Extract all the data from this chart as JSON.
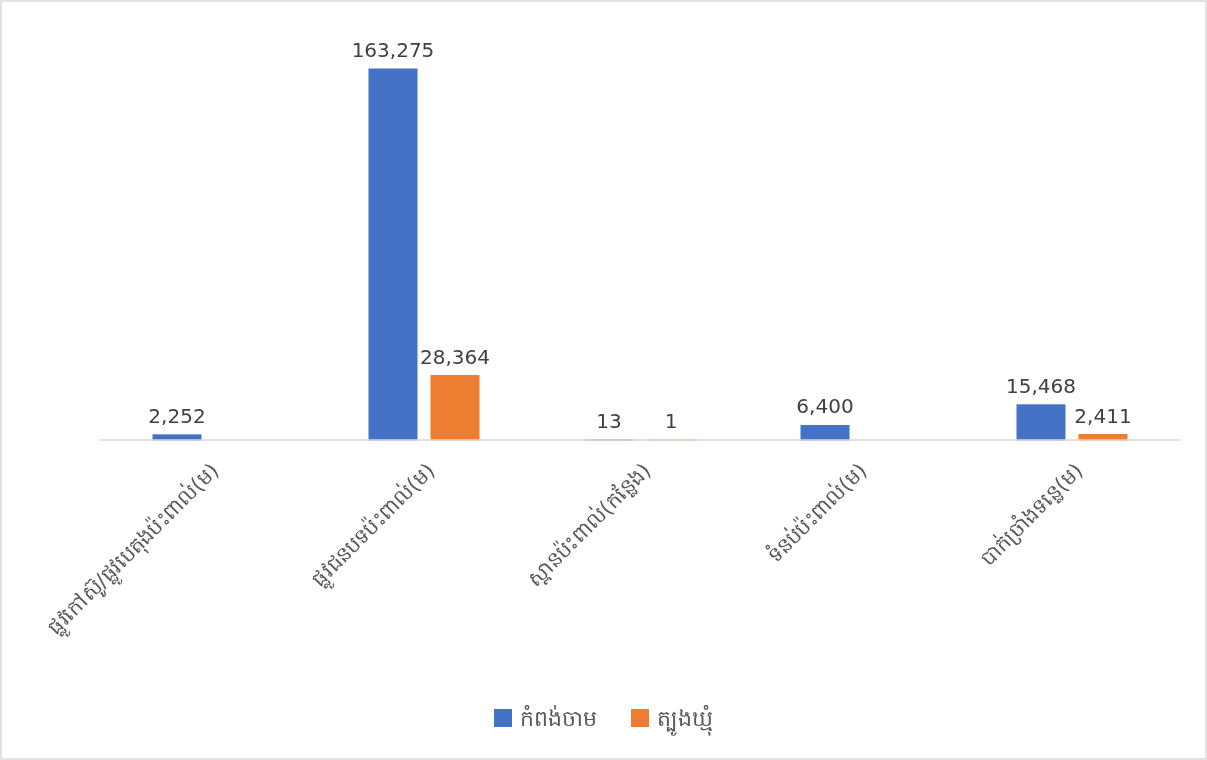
{
  "chart_data": {
    "type": "bar",
    "categories": [
      "ផ្លូវកៅស៊ូ/ផ្លូវបេតុងប៉ះពាល់(ម)",
      "ផ្លូវជនបទប៉ះពាល់(ម)",
      "ស្ពានប៉ះពាល់(កន្លែង)",
      "ទំនប់ប៉ះពាល់(ម)",
      "បាក់ច្រាំងទន្លេ(ម)"
    ],
    "series": [
      {
        "name": "កំពង់ចាម",
        "color": "#4472c4",
        "values": [
          2252,
          163275,
          13,
          6400,
          15468
        ],
        "value_labels": [
          "2,252",
          "163,275",
          "13",
          "6,400",
          "15,468"
        ]
      },
      {
        "name": "ត្បូងឃ្មុំ",
        "color": "#ed7d31",
        "values": [
          null,
          28364,
          1,
          null,
          2411
        ],
        "value_labels": [
          null,
          "28,364",
          "1",
          null,
          "2,411"
        ]
      }
    ],
    "legend": "bottom"
  }
}
